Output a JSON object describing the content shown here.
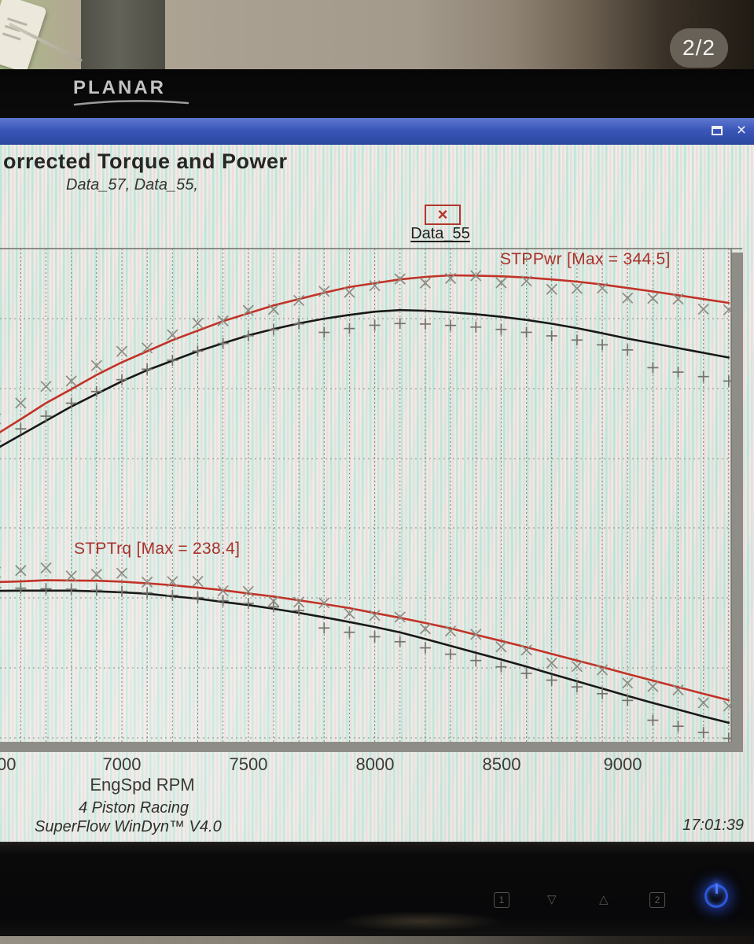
{
  "photo": {
    "page_badge": "2/2"
  },
  "monitor": {
    "brand": "PLANAR",
    "buttons": [
      {
        "label": "1"
      },
      {
        "label": "▽"
      },
      {
        "label": "△"
      },
      {
        "label": "2"
      }
    ]
  },
  "window": {
    "close_glyph": "×"
  },
  "report": {
    "title": "orrected Torque and Power",
    "subtitle": "Data_57, Data_55,",
    "legend_label": "Data_55",
    "legend_marker": "×",
    "power_annotation": "STPPwr [Max = 344.5]",
    "torque_annotation": "STPTrq [Max = 238.4]",
    "xlabel": "EngSpd RPM",
    "footer_line1": "4 Piston Racing",
    "footer_line2": "SuperFlow WinDyn™ V4.0",
    "time": "17:01:39",
    "x_ticks": [
      "00",
      "7000",
      "7500",
      "8000",
      "8500",
      "9000"
    ]
  },
  "chart_data": {
    "type": "line",
    "title": "orrected Torque and Power",
    "subtitle": "Data_57, Data_55,",
    "xlabel": "EngSpd RPM",
    "x_tick_labels": [
      "00",
      "7000",
      "7500",
      "8000",
      "8500",
      "9000"
    ],
    "xlim": [
      6480,
      9430
    ],
    "grid": "dashed horizontal and vertical, vertical minor every 100 RPM",
    "legend": {
      "label": "Data_55",
      "marker": "x",
      "position": "top-center"
    },
    "annotations": [
      {
        "text": "STPPwr [Max = 344.5]",
        "color": "#a8322a"
      },
      {
        "text": "STPTrq [Max = 238.4]",
        "color": "#a8322a"
      }
    ],
    "x_rpm": [
      6500,
      6600,
      6700,
      6800,
      6900,
      7000,
      7100,
      7200,
      7300,
      7400,
      7500,
      7600,
      7700,
      7800,
      7900,
      8000,
      8100,
      8200,
      8300,
      8400,
      8500,
      8600,
      8700,
      8800,
      8900,
      9000,
      9100,
      9200,
      9300,
      9400
    ],
    "series": [
      {
        "name": "STPPwr Data_55",
        "axis": "power",
        "color": "#c23227",
        "marker": "x",
        "max": 344.5,
        "values": [
          294.0,
          299.0,
          304.1,
          308.5,
          313.0,
          317.0,
          320.5,
          324.0,
          327.0,
          330.0,
          332.5,
          335.0,
          337.0,
          339.0,
          340.8,
          342.0,
          343.2,
          344.0,
          344.5,
          344.4,
          344.2,
          343.8,
          343.2,
          342.5,
          341.6,
          340.5,
          339.4,
          338.2,
          337.0,
          335.8
        ]
      },
      {
        "name": "STPPwr Data_57",
        "axis": "power",
        "color": "#181818",
        "marker": "+",
        "values": [
          289.5,
          294.0,
          298.5,
          303.0,
          307.0,
          311.0,
          314.5,
          317.5,
          320.5,
          323.0,
          325.5,
          327.5,
          329.3,
          330.8,
          332.0,
          333.0,
          333.5,
          333.3,
          332.8,
          332.2,
          331.4,
          330.4,
          329.2,
          327.8,
          326.2,
          324.5,
          323.0,
          321.5,
          320.0,
          318.5
        ]
      },
      {
        "name": "STPTrq Data_55",
        "axis": "torque",
        "color": "#c23227",
        "marker": "x",
        "max": 238.4,
        "values": [
          237.6,
          237.9,
          238.4,
          238.3,
          238.2,
          237.8,
          237.1,
          236.3,
          235.3,
          234.2,
          232.8,
          231.5,
          229.9,
          228.3,
          226.6,
          224.5,
          222.5,
          220.3,
          218.0,
          215.3,
          212.7,
          210.0,
          207.2,
          204.4,
          201.6,
          198.7,
          195.9,
          193.1,
          190.3,
          187.6
        ]
      },
      {
        "name": "STPTrq Data_57",
        "axis": "torque",
        "color": "#181818",
        "marker": "+",
        "values": [
          233.9,
          234.0,
          234.0,
          234.0,
          233.7,
          233.3,
          232.7,
          231.6,
          230.6,
          229.2,
          227.9,
          226.3,
          224.6,
          222.7,
          220.7,
          218.6,
          216.3,
          213.5,
          210.6,
          207.7,
          204.8,
          201.8,
          198.7,
          195.6,
          192.5,
          189.4,
          186.4,
          183.6,
          180.7,
          178.0
        ]
      }
    ]
  }
}
